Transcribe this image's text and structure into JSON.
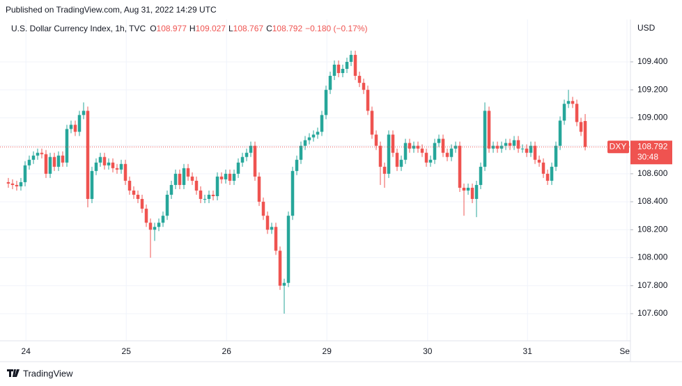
{
  "header": {
    "published": "Published on TradingView.com, Aug 31, 2022 14:29 UTC"
  },
  "footer": {
    "brand": "TradingView"
  },
  "chart_data": {
    "type": "candlestick",
    "title": "U.S. Dollar Currency Index, 1h, TVC",
    "ohlc_labels": [
      "O",
      "H",
      "L",
      "C"
    ],
    "change_text": "−0.180 (−0.17%)",
    "currency": "USD",
    "symbol": "DXY",
    "countdown": "30:48",
    "up_color": "#26a69a",
    "down_color": "#ef5350",
    "open": [
      108.54,
      108.53,
      108.52,
      108.51,
      108.54,
      108.66,
      108.7,
      108.73,
      108.75,
      108.74,
      108.6,
      108.72,
      108.65,
      108.73,
      108.68,
      108.92,
      108.95,
      108.9,
      109.02,
      109.05,
      108.42,
      108.62,
      108.68,
      108.72,
      108.66,
      108.68,
      108.64,
      108.63,
      108.67,
      108.55,
      108.48,
      108.45,
      108.42,
      108.35,
      108.25,
      108.2,
      108.22,
      108.25,
      108.3,
      108.45,
      108.52,
      108.6,
      108.52,
      108.64,
      108.58,
      108.55,
      108.48,
      108.42,
      108.42,
      108.45,
      108.44,
      108.58,
      108.56,
      108.6,
      108.55,
      108.6,
      108.68,
      108.72,
      108.75,
      108.8,
      108.58,
      108.4,
      108.3,
      108.2,
      108.22,
      108.05,
      107.8,
      107.82,
      108.3,
      108.62,
      108.7,
      108.8,
      108.84,
      108.86,
      108.88,
      108.9,
      109.02,
      109.2,
      109.3,
      109.38,
      109.32,
      109.35,
      109.4,
      109.45,
      109.3,
      109.25,
      109.2,
      109.05,
      108.88,
      108.8,
      108.65,
      108.6,
      108.88,
      108.75,
      108.65,
      108.7,
      108.82,
      108.78,
      108.8,
      108.78,
      108.75,
      108.68,
      108.7,
      108.82,
      108.85,
      108.75,
      108.72,
      108.78,
      108.8,
      108.5,
      108.48,
      108.5,
      108.42,
      108.52,
      108.65,
      109.05,
      108.78,
      108.8,
      108.78,
      108.8,
      108.82,
      108.8,
      108.84,
      108.78,
      108.78,
      108.75,
      108.8,
      108.7,
      108.68,
      108.6,
      108.55,
      108.65,
      108.8,
      108.98,
      109.1,
      109.12,
      109.1,
      108.97,
      108.977
    ],
    "high": [
      108.57,
      108.56,
      108.55,
      108.57,
      108.69,
      108.73,
      108.76,
      108.78,
      108.78,
      108.77,
      108.75,
      108.75,
      108.76,
      108.76,
      108.95,
      108.98,
      108.98,
      109.05,
      109.11,
      109.08,
      108.65,
      108.71,
      108.75,
      108.75,
      108.71,
      108.71,
      108.67,
      108.7,
      108.7,
      108.58,
      108.51,
      108.48,
      108.45,
      108.38,
      108.28,
      108.25,
      108.28,
      108.33,
      108.48,
      108.55,
      108.63,
      108.63,
      108.67,
      108.67,
      108.61,
      108.58,
      108.51,
      108.45,
      108.48,
      108.48,
      108.61,
      108.61,
      108.63,
      108.63,
      108.63,
      108.71,
      108.75,
      108.78,
      108.83,
      108.83,
      108.61,
      108.43,
      108.33,
      108.25,
      108.25,
      108.08,
      107.85,
      108.33,
      108.65,
      108.73,
      108.83,
      108.87,
      108.89,
      108.91,
      108.93,
      109.05,
      109.23,
      109.33,
      109.41,
      109.41,
      109.38,
      109.43,
      109.48,
      109.48,
      109.33,
      109.28,
      109.23,
      109.08,
      108.91,
      108.83,
      108.68,
      108.91,
      108.91,
      108.78,
      108.73,
      108.85,
      108.85,
      108.83,
      108.83,
      108.81,
      108.78,
      108.73,
      108.85,
      108.88,
      108.88,
      108.78,
      108.81,
      108.83,
      108.83,
      108.53,
      108.53,
      108.53,
      108.55,
      108.68,
      109.11,
      109.08,
      108.83,
      108.83,
      108.83,
      108.85,
      108.85,
      108.87,
      108.87,
      108.81,
      108.81,
      108.83,
      108.83,
      108.73,
      108.71,
      108.63,
      108.68,
      108.83,
      109.01,
      109.13,
      109.2,
      109.15,
      109.13,
      109.0,
      109.027
    ],
    "low": [
      108.5,
      108.49,
      108.48,
      108.48,
      108.51,
      108.63,
      108.67,
      108.7,
      108.71,
      108.57,
      108.57,
      108.62,
      108.62,
      108.65,
      108.65,
      108.89,
      108.87,
      108.87,
      108.99,
      108.36,
      108.39,
      108.59,
      108.65,
      108.63,
      108.63,
      108.61,
      108.6,
      108.6,
      108.52,
      108.45,
      108.42,
      108.39,
      108.32,
      108.22,
      108.0,
      108.12,
      108.19,
      108.22,
      108.27,
      108.42,
      108.49,
      108.49,
      108.49,
      108.55,
      108.52,
      108.45,
      108.39,
      108.39,
      108.39,
      108.41,
      108.41,
      108.53,
      108.53,
      108.52,
      108.52,
      108.57,
      108.65,
      108.69,
      108.72,
      108.55,
      108.37,
      108.27,
      108.17,
      108.17,
      108.02,
      107.77,
      107.6,
      107.79,
      108.27,
      108.59,
      108.67,
      108.77,
      108.81,
      108.83,
      108.85,
      108.87,
      108.99,
      109.17,
      109.27,
      109.29,
      109.29,
      109.32,
      109.37,
      109.27,
      109.22,
      109.17,
      109.02,
      108.85,
      108.77,
      108.52,
      108.5,
      108.57,
      108.72,
      108.62,
      108.62,
      108.67,
      108.75,
      108.75,
      108.75,
      108.72,
      108.65,
      108.65,
      108.67,
      108.79,
      108.72,
      108.69,
      108.69,
      108.75,
      108.47,
      108.3,
      108.45,
      108.39,
      108.29,
      108.49,
      108.62,
      108.75,
      108.75,
      108.75,
      108.75,
      108.77,
      108.77,
      108.77,
      108.75,
      108.75,
      108.72,
      108.72,
      108.67,
      108.65,
      108.57,
      108.52,
      108.52,
      108.62,
      108.77,
      108.95,
      109.07,
      109.07,
      108.94,
      108.87,
      108.767
    ],
    "close": [
      108.53,
      108.52,
      108.51,
      108.54,
      108.66,
      108.7,
      108.73,
      108.75,
      108.74,
      108.6,
      108.72,
      108.65,
      108.73,
      108.68,
      108.92,
      108.95,
      108.9,
      109.02,
      109.05,
      108.42,
      108.62,
      108.68,
      108.72,
      108.66,
      108.68,
      108.64,
      108.63,
      108.67,
      108.55,
      108.48,
      108.45,
      108.42,
      108.35,
      108.25,
      108.2,
      108.22,
      108.25,
      108.3,
      108.45,
      108.52,
      108.6,
      108.52,
      108.64,
      108.58,
      108.55,
      108.48,
      108.42,
      108.42,
      108.45,
      108.44,
      108.58,
      108.56,
      108.6,
      108.55,
      108.6,
      108.68,
      108.72,
      108.75,
      108.8,
      108.58,
      108.4,
      108.3,
      108.2,
      108.22,
      108.05,
      107.8,
      107.82,
      108.3,
      108.62,
      108.7,
      108.8,
      108.84,
      108.86,
      108.88,
      108.9,
      109.02,
      109.2,
      109.3,
      109.38,
      109.32,
      109.35,
      109.4,
      109.45,
      109.3,
      109.25,
      109.2,
      109.05,
      108.88,
      108.8,
      108.65,
      108.6,
      108.88,
      108.75,
      108.65,
      108.7,
      108.82,
      108.78,
      108.8,
      108.78,
      108.75,
      108.68,
      108.7,
      108.82,
      108.85,
      108.75,
      108.72,
      108.78,
      108.8,
      108.5,
      108.48,
      108.5,
      108.42,
      108.52,
      108.65,
      109.05,
      108.78,
      108.8,
      108.78,
      108.8,
      108.82,
      108.8,
      108.84,
      108.78,
      108.78,
      108.75,
      108.8,
      108.7,
      108.68,
      108.6,
      108.55,
      108.65,
      108.8,
      108.98,
      109.1,
      109.12,
      109.1,
      108.97,
      108.9,
      108.792
    ],
    "xlim": [
      -2,
      148.83
    ],
    "xticks": [
      {
        "value": 4.2,
        "label": "24"
      },
      {
        "value": 28.2,
        "label": "25"
      },
      {
        "value": 52.2,
        "label": "26"
      },
      {
        "value": 76.2,
        "label": "29"
      },
      {
        "value": 100.3,
        "label": "30"
      },
      {
        "value": 124.2,
        "label": "31"
      },
      {
        "value": 148,
        "label": "Sep"
      }
    ],
    "ylim": [
      107.406,
      109.703
    ],
    "yticks": [
      {
        "value": 107.6,
        "label": "107.600"
      },
      {
        "value": 107.8,
        "label": "107.800"
      },
      {
        "value": 108.0,
        "label": "108.000"
      },
      {
        "value": 108.2,
        "label": "108.200"
      },
      {
        "value": 108.4,
        "label": "108.400"
      },
      {
        "value": 108.6,
        "label": "108.600"
      },
      {
        "value": 108.8,
        "label": "108.800"
      },
      {
        "value": 109.0,
        "label": "109.000"
      },
      {
        "value": 109.2,
        "label": "109.200"
      },
      {
        "value": 109.4,
        "label": "109.400"
      }
    ],
    "grid": true
  }
}
